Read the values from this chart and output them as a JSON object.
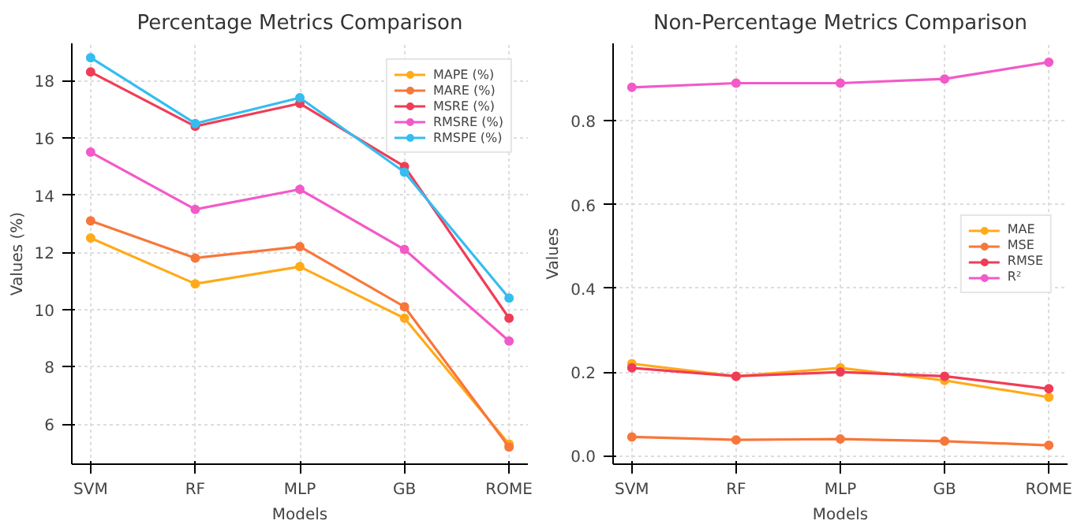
{
  "chart_data": [
    {
      "type": "line",
      "title": "Percentage Metrics Comparison",
      "xlabel": "Models",
      "ylabel": "Values (%)",
      "categories": [
        "SVM",
        "RF",
        "MLP",
        "GB",
        "ROME"
      ],
      "ylim": [
        4.6,
        19.3
      ],
      "yticks": [
        6,
        8,
        10,
        12,
        14,
        16,
        18
      ],
      "grid": true,
      "legend": "top right",
      "marker": "circle",
      "series": [
        {
          "name": "MAPE (%)",
          "color": "#ffaa1a",
          "values": [
            12.5,
            10.9,
            11.5,
            9.7,
            5.3
          ]
        },
        {
          "name": "MARE (%)",
          "color": "#f7773a",
          "values": [
            13.1,
            11.8,
            12.2,
            10.1,
            5.2
          ]
        },
        {
          "name": "MSRE (%)",
          "color": "#f03d57",
          "values": [
            18.3,
            16.4,
            17.2,
            15.0,
            9.7
          ]
        },
        {
          "name": "RMSRE (%)",
          "color": "#f25ac8",
          "values": [
            15.5,
            13.5,
            14.2,
            12.1,
            8.9
          ]
        },
        {
          "name": "RMSPE (%)",
          "color": "#35bdf0",
          "values": [
            18.8,
            16.5,
            17.4,
            14.8,
            10.4
          ]
        }
      ]
    },
    {
      "type": "line",
      "title": "Non-Percentage Metrics Comparison",
      "xlabel": "Models",
      "ylabel": "Values",
      "categories": [
        "SVM",
        "RF",
        "MLP",
        "GB",
        "ROME"
      ],
      "ylim": [
        -0.02,
        0.985
      ],
      "yticks": [
        {
          "value": 0,
          "label": "0.0"
        },
        0.2,
        0.4,
        0.6,
        0.8
      ],
      "grid": true,
      "legend": "right",
      "marker": "circle",
      "series": [
        {
          "name": "MAE",
          "color": "#ffaa1a",
          "values": [
            0.22,
            0.19,
            0.21,
            0.18,
            0.14
          ]
        },
        {
          "name": "MSE",
          "color": "#f7773a",
          "values": [
            0.045,
            0.038,
            0.04,
            0.035,
            0.025
          ]
        },
        {
          "name": "RMSE",
          "color": "#f03d57",
          "values": [
            0.21,
            0.19,
            0.2,
            0.19,
            0.16
          ]
        },
        {
          "name": "R²",
          "color": "#f25ac8",
          "values": [
            0.88,
            0.89,
            0.89,
            0.9,
            0.94
          ]
        }
      ]
    }
  ]
}
